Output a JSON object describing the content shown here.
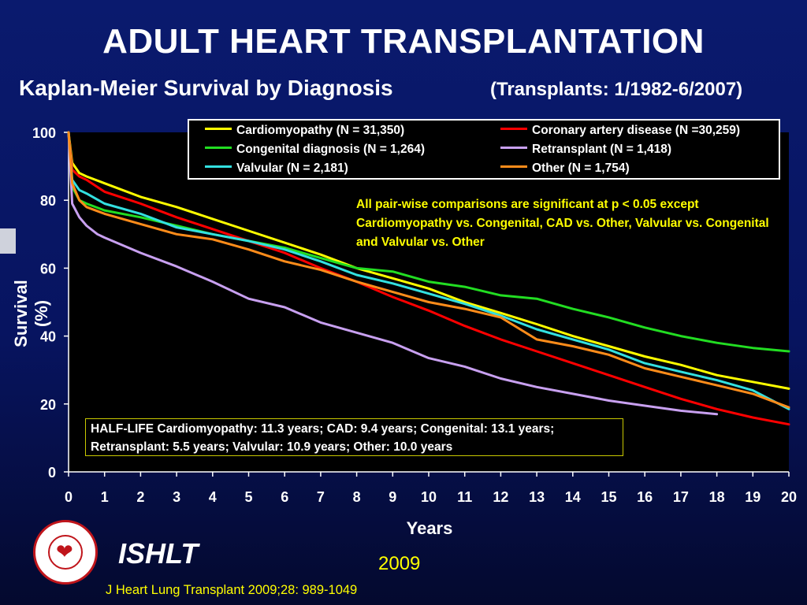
{
  "title": "ADULT HEART TRANSPLANTATION",
  "subtitle": "Kaplan-Meier Survival by Diagnosis",
  "subtitle_note": "(Transplants: 1/1982-6/2007)",
  "footer": {
    "org": "ISHLT",
    "year": "2009",
    "citation": "J Heart Lung Transplant 2009;28: 989-1049"
  },
  "chart_data": {
    "type": "line",
    "xlabel": "Years",
    "ylabel": "Survival (%)",
    "xlim": [
      0,
      20
    ],
    "ylim": [
      0,
      100
    ],
    "xticks": [
      0,
      1,
      2,
      3,
      4,
      5,
      6,
      7,
      8,
      9,
      10,
      11,
      12,
      13,
      14,
      15,
      16,
      17,
      18,
      19,
      20
    ],
    "yticks": [
      0,
      20,
      40,
      60,
      80,
      100
    ],
    "legend_placement": "top",
    "annotation": "All pair-wise comparisons are significant at p < 0.05 except Cardiomyopathy vs. Congenital,  CAD vs. Other, Valvular vs. Congenital and Valvular vs. Other",
    "halflife_line1": "HALF-LIFE  Cardiomyopathy: 11.3 years; CAD: 9.4 years; Congenital: 13.1 years;",
    "halflife_line2": "Retransplant: 5.5 years; Valvular: 10.9 years; Other: 10.0 years",
    "series": [
      {
        "name": "Cardiomyopathy (N = 31,350)",
        "color": "#ffff00",
        "x": [
          0,
          0.1,
          0.3,
          0.5,
          1,
          2,
          3,
          4,
          5,
          6,
          7,
          8,
          9,
          10,
          11,
          12,
          13,
          14,
          15,
          16,
          17,
          18,
          19,
          20
        ],
        "y": [
          100,
          91,
          88,
          87,
          85,
          81,
          78,
          74.5,
          71,
          67.5,
          64,
          60,
          57,
          54,
          50,
          46.8,
          43.5,
          40,
          37,
          34,
          31.5,
          28.5,
          26.5,
          24.5
        ]
      },
      {
        "name": "Coronary artery disease (N =30,259)",
        "color": "#ff0000",
        "x": [
          0,
          0.1,
          0.3,
          0.5,
          1,
          2,
          3,
          4,
          5,
          6,
          7,
          8,
          9,
          10,
          11,
          12,
          13,
          14,
          15,
          16,
          17,
          18,
          19,
          20
        ],
        "y": [
          100,
          89,
          87,
          86,
          82.5,
          79,
          75,
          71.5,
          68,
          64.5,
          60,
          56,
          51.5,
          47.5,
          43,
          39,
          35.5,
          32,
          28.5,
          25,
          21.5,
          18.5,
          16,
          14
        ]
      },
      {
        "name": "Congenital diagnosis (N = 1,264)",
        "color": "#22dd22",
        "x": [
          0,
          0.1,
          0.3,
          0.5,
          1,
          2,
          3,
          4,
          5,
          6,
          7,
          8,
          9,
          10,
          11,
          12,
          13,
          14,
          15,
          16,
          17,
          18,
          19,
          20
        ],
        "y": [
          100,
          84,
          80,
          79,
          77,
          75,
          72.5,
          70,
          68,
          66,
          63,
          60,
          59,
          56,
          54.5,
          52,
          51,
          48,
          45.5,
          42.5,
          40,
          38,
          36.5,
          35.5
        ]
      },
      {
        "name": "Retransplant (N = 1,418)",
        "color": "#c8a0f0",
        "x": [
          0,
          0.1,
          0.3,
          0.5,
          0.8,
          1,
          2,
          3,
          4,
          5,
          6,
          7,
          8,
          9,
          10,
          11,
          12,
          13,
          14,
          15,
          16,
          17,
          18
        ],
        "y": [
          100,
          79,
          75,
          72.5,
          70,
          69,
          64.5,
          60.5,
          56,
          51,
          48.5,
          44,
          41,
          38,
          33.5,
          31,
          27.5,
          25,
          23,
          21,
          19.5,
          18,
          17
        ]
      },
      {
        "name": "Valvular (N = 2,181)",
        "color": "#33e0e0",
        "x": [
          0,
          0.1,
          0.3,
          0.5,
          1,
          2,
          3,
          4,
          5,
          6,
          7,
          8,
          9,
          10,
          11,
          12,
          13,
          14,
          15,
          16,
          17,
          18,
          19,
          20
        ],
        "y": [
          100,
          86,
          83,
          82,
          79,
          76,
          72,
          70,
          68,
          65.5,
          62,
          58,
          55.5,
          52.5,
          49.5,
          46,
          42,
          39,
          36,
          32,
          29.5,
          27,
          24,
          18.5
        ]
      },
      {
        "name": "Other (N = 1,754)",
        "color": "#ff8c1a",
        "x": [
          0,
          0.1,
          0.3,
          0.5,
          1,
          2,
          3,
          4,
          5,
          6,
          7,
          8,
          9,
          10,
          11,
          12,
          13,
          14,
          15,
          16,
          17,
          18,
          19,
          20
        ],
        "y": [
          100,
          85,
          80,
          78,
          76,
          73,
          70,
          68.5,
          65.5,
          62,
          59.5,
          56,
          53,
          50,
          48,
          45.5,
          39,
          37,
          34.5,
          30.5,
          28,
          25.5,
          23,
          19
        ]
      }
    ]
  }
}
